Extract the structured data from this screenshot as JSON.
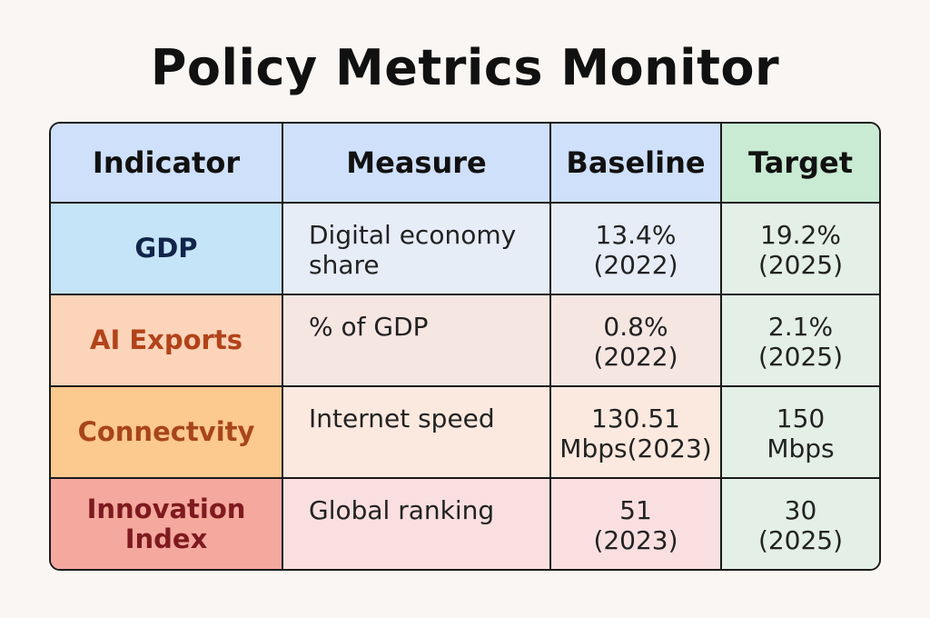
{
  "title": "Policy Metrics Monitor",
  "headers": {
    "indicator": "Indicator",
    "measure": "Measure",
    "baseline": "Baseline",
    "target": "Target"
  },
  "rows": [
    {
      "indicator": "GDP",
      "measure": "Digital economy share",
      "baseline": "13.4%\n(2022)",
      "target": "19.2%\n(2025)"
    },
    {
      "indicator": "AI Exports",
      "measure": "% of GDP",
      "baseline": "0.8%\n(2022)",
      "target": "2.1%\n(2025)"
    },
    {
      "indicator": "Connectvity",
      "measure": "Internet speed",
      "baseline": "130.51\nMbps(2023)",
      "target": "150\nMbps"
    },
    {
      "indicator": "Innovation Index",
      "measure": "Global ranking",
      "baseline": "51\n(2023)",
      "target": "30\n(2025)"
    }
  ]
}
